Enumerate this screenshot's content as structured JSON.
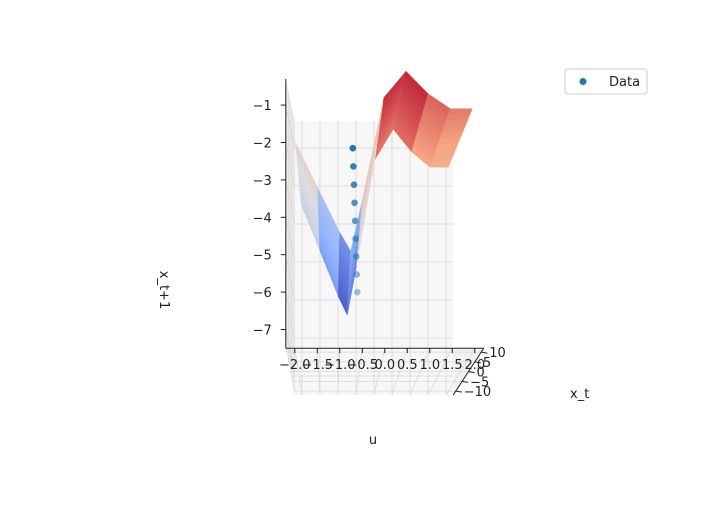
{
  "chart_data": {
    "type": "scatter",
    "subtype": "3d-surface-with-scatter",
    "title": "",
    "xlabel": "u",
    "ylabel": "x_t",
    "zlabel": "x_t+1",
    "x_ticks": [
      "−2.0",
      "−1.5",
      "−1.0",
      "−0.5",
      "0.0",
      "0.5",
      "1.0",
      "1.5",
      "2.0"
    ],
    "y_ticks": [
      "−10",
      "−5",
      "0",
      "5",
      "10"
    ],
    "z_ticks": [
      "−1",
      "−2",
      "−3",
      "−4",
      "−5",
      "−6",
      "−7"
    ],
    "xlim": [
      -2.2,
      2.2
    ],
    "ylim": [
      -12,
      12
    ],
    "zlim": [
      -7.5,
      -0.3
    ],
    "grid": true,
    "colormap": "coolwarm",
    "legend": {
      "placement": "top-right",
      "entries": [
        {
          "label": "Data",
          "color": "#1f77b4"
        }
      ]
    },
    "series": [
      {
        "name": "Data",
        "marker": "circle",
        "color": "#1f77b4",
        "points": [
          {
            "u": -0.6,
            "x_t": -10,
            "x_t1": -1.1
          },
          {
            "u": -0.6,
            "x_t": -7.5,
            "x_t1": -1.7
          },
          {
            "u": -0.6,
            "x_t": -5,
            "x_t1": -2.3
          },
          {
            "u": -0.6,
            "x_t": -2.5,
            "x_t1": -2.9
          },
          {
            "u": -0.6,
            "x_t": 0,
            "x_t1": -3.5
          },
          {
            "u": -0.6,
            "x_t": 2.5,
            "x_t1": -4.1
          },
          {
            "u": -0.6,
            "x_t": 5,
            "x_t1": -4.7
          },
          {
            "u": -0.6,
            "x_t": 7.5,
            "x_t1": -5.3
          },
          {
            "u": -0.6,
            "x_t": 10,
            "x_t1": -5.9
          }
        ]
      }
    ],
    "surface": {
      "u": [
        -2.0,
        -1.5,
        -1.0,
        -0.75,
        -0.5,
        0.0,
        0.5,
        1.0,
        1.5,
        2.0
      ],
      "x_t_rows": [
        -10,
        10
      ],
      "z_front": [
        -2.6,
        -3.8,
        -5.0,
        -5.5,
        -4.2,
        -1.4,
        -0.6,
        -1.2,
        -1.6,
        -1.6
      ],
      "z_back": [
        -1.9,
        -3.1,
        -4.3,
        -4.8,
        -3.5,
        -0.7,
        0.0,
        -0.6,
        -1.0,
        -1.0
      ]
    }
  }
}
